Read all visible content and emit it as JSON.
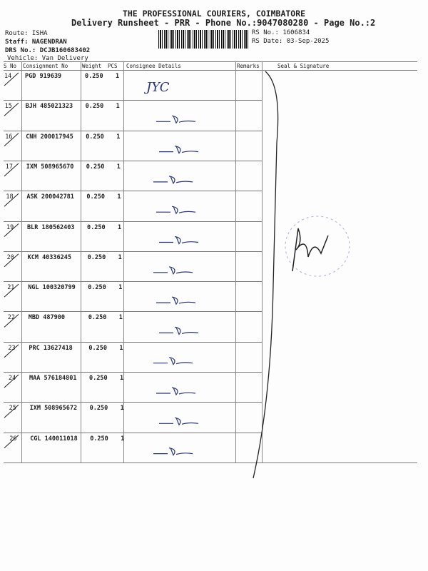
{
  "header": {
    "title": "THE PROFESSIONAL COURIERS, COIMBATORE",
    "subtitle": "Delivery Runsheet - PRR - Phone No.:9047080280 - Page No.:2",
    "route": "Route: ISHA",
    "staff": "Staff: NAGENDRAN",
    "drs": "DRS No.: DCJB160683402",
    "vehicle": "Vehicle: Van Delivery",
    "rs_no": "RS No.: 1606834",
    "rs_date": "RS Date: 03-Sep-2025"
  },
  "table": {
    "columns": [
      "S No",
      "Consignment No",
      "Weight",
      "PCS",
      "Consignee Details",
      "Remarks",
      "Seal & Signature"
    ],
    "rows": [
      {
        "sno": "14",
        "cn": "PGD 919639",
        "weight": "0.250",
        "pcs": "1",
        "note": "JYC"
      },
      {
        "sno": "15",
        "cn": "BJH 485021323",
        "weight": "0.250",
        "pcs": "1"
      },
      {
        "sno": "16",
        "cn": "CNH 200017945",
        "weight": "0.250",
        "pcs": "1"
      },
      {
        "sno": "17",
        "cn": "IXM 508965670",
        "weight": "0.250",
        "pcs": "1"
      },
      {
        "sno": "18",
        "cn": "ASK 200042781",
        "weight": "0.250",
        "pcs": "1"
      },
      {
        "sno": "19",
        "cn": "BLR 180562403",
        "weight": "0.250",
        "pcs": "1"
      },
      {
        "sno": "20",
        "cn": "KCM 40336245",
        "weight": "0.250",
        "pcs": "1"
      },
      {
        "sno": "21",
        "cn": "NGL 100320799",
        "weight": "0.250",
        "pcs": "1"
      },
      {
        "sno": "22",
        "cn": "MBD 487900",
        "weight": "0.250",
        "pcs": "1"
      },
      {
        "sno": "23",
        "cn": "PRC 13627418",
        "weight": "0.250",
        "pcs": "1"
      },
      {
        "sno": "24",
        "cn": "MAA 576184801",
        "weight": "0.250",
        "pcs": "1"
      },
      {
        "sno": "25",
        "cn": "IXM 508965672",
        "weight": "0.250",
        "pcs": "1"
      },
      {
        "sno": "26",
        "cn": "CGL 140011018",
        "weight": "0.250",
        "pcs": "1"
      }
    ]
  },
  "colors": {
    "ink": "#2a3580",
    "stamp": "#b9a8d8"
  }
}
